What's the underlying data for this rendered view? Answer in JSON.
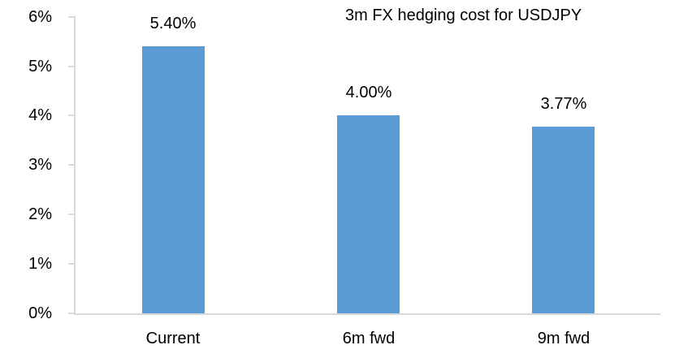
{
  "chart_data": {
    "type": "bar",
    "title": "3m FX hedging cost for USDJPY",
    "categories": [
      "Current",
      "6m fwd",
      "9m fwd"
    ],
    "values": [
      5.4,
      4.0,
      3.77
    ],
    "value_labels": [
      "5.40%",
      "4.00%",
      "3.77%"
    ],
    "yticks": [
      {
        "value": 0,
        "label": "0%"
      },
      {
        "value": 1,
        "label": "1%"
      },
      {
        "value": 2,
        "label": "2%"
      },
      {
        "value": 3,
        "label": "3%"
      },
      {
        "value": 4,
        "label": "4%"
      },
      {
        "value": 5,
        "label": "5%"
      },
      {
        "value": 6,
        "label": "6%"
      }
    ],
    "ylim": [
      0,
      6
    ],
    "xlabel": "",
    "ylabel": "",
    "grid": false,
    "legend": null,
    "bar_color": "#5B9BD5",
    "axis_color": "#D9D9D9",
    "text_color": "#000000"
  }
}
